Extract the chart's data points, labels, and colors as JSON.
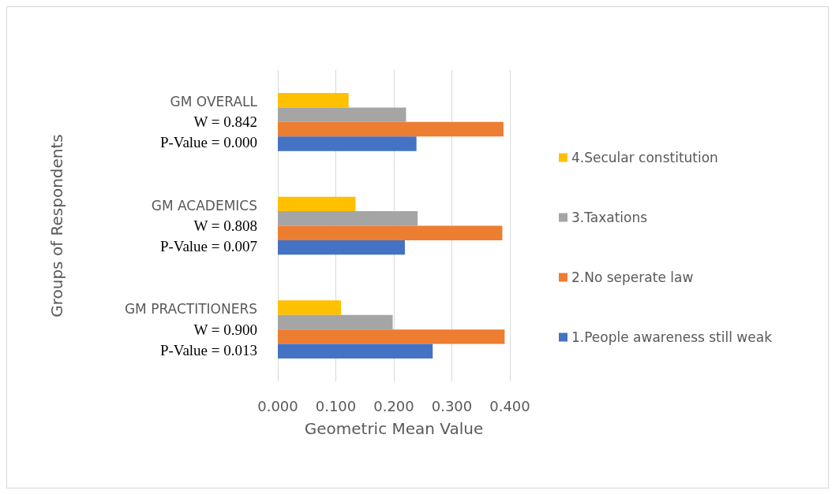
{
  "chart_data": {
    "type": "bar",
    "orientation": "horizontal",
    "xlabel": "Geometric Mean Value",
    "ylabel": "Groups of Respondents",
    "categories": [
      "GM OVERALL\nW = 0.842\nP-Value = 0.000",
      "GM ACADEMICS\nW = 0.808\nP-Value = 0.007",
      "GM PRACTITIONERS\nW = 0.900\nP-Value = 0.013"
    ],
    "series": [
      {
        "name": "1.People awareness still weak",
        "color": "#4472c4",
        "values": [
          0.239,
          0.219,
          0.267
        ]
      },
      {
        "name": "2.No seperate law",
        "color": "#ed7d31",
        "values": [
          0.389,
          0.387,
          0.391
        ]
      },
      {
        "name": "3.Taxations",
        "color": "#a5a5a5",
        "values": [
          0.221,
          0.241,
          0.198
        ]
      },
      {
        "name": "4.Secular constitution",
        "color": "#ffc000",
        "values": [
          0.122,
          0.134,
          0.109
        ]
      }
    ],
    "xlim": [
      0,
      0.4
    ],
    "xticks": [
      {
        "value": 0,
        "label": "0.000"
      },
      {
        "value": 0.1,
        "label": "0.100"
      },
      {
        "value": 0.2,
        "label": "0.200"
      },
      {
        "value": 0.3,
        "label": "0.300"
      },
      {
        "value": 0.4,
        "label": "0.400"
      }
    ],
    "grid": "x",
    "legend": "right"
  }
}
